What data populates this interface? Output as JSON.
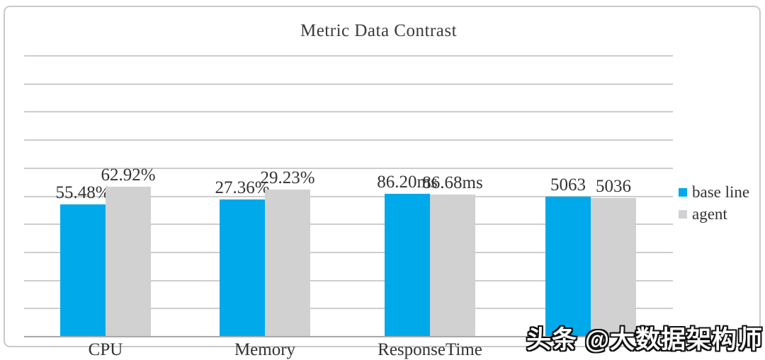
{
  "watermark": {
    "text": "头条 @大数据架构师"
  },
  "chart_data": {
    "type": "bar",
    "title": "Metric Data Contrast",
    "categories": [
      "CPU",
      "Memory",
      "ResponseTime",
      ""
    ],
    "fourth_category_label_obscured_by_watermark": true,
    "series": [
      {
        "name": "base line",
        "color": "#00a9e9",
        "values": [
          55.48,
          27.36,
          86.2,
          5063
        ],
        "labels": [
          "55.48%",
          "27.36%",
          "86.20ms",
          "5063"
        ]
      },
      {
        "name": "agent",
        "color": "#d1d1d1",
        "values": [
          62.92,
          29.23,
          86.68,
          5036
        ],
        "labels": [
          "62.92%",
          "29.23%",
          "86.68ms",
          "5036"
        ]
      }
    ],
    "units_per_category": [
      "%",
      "%",
      "ms",
      ""
    ],
    "legend_position": "right",
    "grid": true,
    "gridline_count": 10,
    "gridline_color": "#cdcdcd",
    "axis_color": "#a8a8a8",
    "note_scale": "bars are not drawn on a common numeric scale; per-bar drawn heights as fraction of plot height follow",
    "display_height_frac": [
      [
        0.468,
        0.486,
        0.506,
        0.496
      ],
      [
        0.531,
        0.521,
        0.504,
        0.491
      ]
    ]
  }
}
